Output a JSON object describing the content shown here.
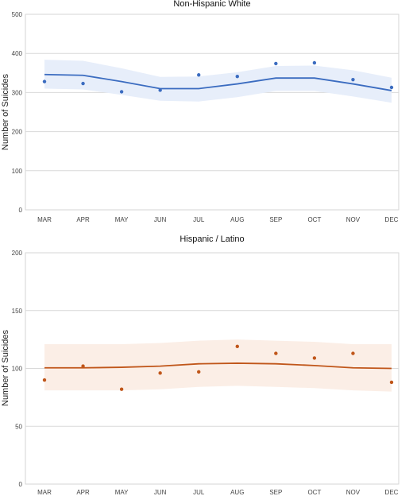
{
  "chart_data": [
    {
      "type": "line",
      "title": "Non-Hispanic White",
      "xlabel": "",
      "ylabel": "Number of Suicides",
      "categories": [
        "MAR",
        "APR",
        "MAY",
        "JUN",
        "JUL",
        "AUG",
        "SEP",
        "OCT",
        "NOV",
        "DEC"
      ],
      "ylim": [
        0,
        500
      ],
      "yticks": [
        0,
        100,
        200,
        300,
        400,
        500
      ],
      "grid": true,
      "color": "#3b6cc0",
      "band_color": "#e7eefa",
      "series": [
        {
          "kind": "observed",
          "values": [
            328,
            323,
            302,
            306,
            345,
            341,
            374,
            376,
            333,
            313
          ]
        },
        {
          "kind": "expected",
          "values": [
            346,
            344,
            328,
            310,
            310,
            322,
            337,
            337,
            322,
            305
          ]
        },
        {
          "kind": "upper",
          "values": [
            384,
            381,
            362,
            340,
            341,
            352,
            368,
            369,
            357,
            338
          ]
        },
        {
          "kind": "lower",
          "values": [
            310,
            308,
            294,
            279,
            277,
            288,
            304,
            304,
            290,
            274
          ]
        }
      ]
    },
    {
      "type": "line",
      "title": "Hispanic / Latino",
      "xlabel": "",
      "ylabel": "Number of Suicides",
      "categories": [
        "MAR",
        "APR",
        "MAY",
        "JUN",
        "JUL",
        "AUG",
        "SEP",
        "OCT",
        "NOV",
        "DEC"
      ],
      "ylim": [
        0,
        200
      ],
      "yticks": [
        0,
        50,
        100,
        150,
        200
      ],
      "grid": true,
      "color": "#c0561a",
      "band_color": "#fbeee6",
      "series": [
        {
          "kind": "observed",
          "values": [
            90,
            102,
            82,
            96,
            97,
            119,
            113,
            109,
            113,
            88
          ]
        },
        {
          "kind": "expected",
          "values": [
            100.5,
            100.5,
            101,
            102,
            104,
            104.5,
            104,
            102.5,
            100.5,
            100
          ]
        },
        {
          "kind": "upper",
          "values": [
            121,
            121,
            121,
            122,
            124,
            125,
            124,
            123,
            121,
            121
          ]
        },
        {
          "kind": "lower",
          "values": [
            81,
            81,
            81,
            82,
            84,
            85,
            84,
            83,
            81,
            80
          ]
        }
      ]
    }
  ]
}
